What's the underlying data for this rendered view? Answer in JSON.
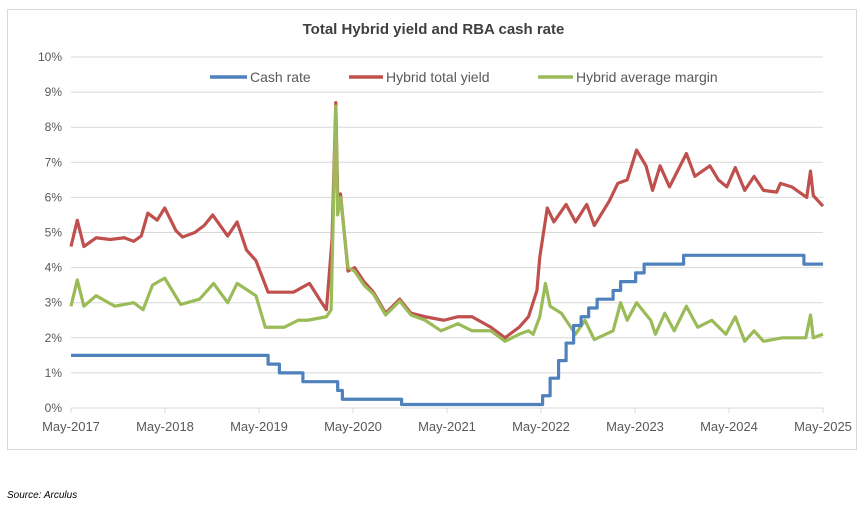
{
  "chart_data": {
    "type": "line",
    "title": "Total Hybrid yield and RBA cash rate",
    "xlabel": "",
    "ylabel": "",
    "x_unit": "decimal year",
    "xlim": [
      2017.333,
      2025.333
    ],
    "ylim": [
      0,
      10
    ],
    "grid": true,
    "legend_position": "top",
    "y_ticks": [
      "0%",
      "1%",
      "2%",
      "3%",
      "4%",
      "5%",
      "6%",
      "7%",
      "8%",
      "9%",
      "10%"
    ],
    "x_ticks": [
      {
        "x": 2017.333,
        "label": "May-2017"
      },
      {
        "x": 2018.333,
        "label": "May-2018"
      },
      {
        "x": 2019.333,
        "label": "May-2019"
      },
      {
        "x": 2020.333,
        "label": "May-2020"
      },
      {
        "x": 2021.333,
        "label": "May-2021"
      },
      {
        "x": 2022.333,
        "label": "May-2022"
      },
      {
        "x": 2023.333,
        "label": "May-2023"
      },
      {
        "x": 2024.333,
        "label": "May-2024"
      },
      {
        "x": 2025.333,
        "label": "May-2025"
      }
    ],
    "series": [
      {
        "name": "Cash rate",
        "color": "#4f81bd",
        "step": true,
        "points": [
          [
            2017.333,
            1.5
          ],
          [
            2019.43,
            1.25
          ],
          [
            2019.55,
            1.0
          ],
          [
            2019.8,
            0.75
          ],
          [
            2020.17,
            0.5
          ],
          [
            2020.22,
            0.25
          ],
          [
            2020.85,
            0.1
          ],
          [
            2022.35,
            0.35
          ],
          [
            2022.43,
            0.85
          ],
          [
            2022.52,
            1.35
          ],
          [
            2022.6,
            1.85
          ],
          [
            2022.68,
            2.35
          ],
          [
            2022.76,
            2.6
          ],
          [
            2022.84,
            2.85
          ],
          [
            2022.93,
            3.1
          ],
          [
            2023.1,
            3.35
          ],
          [
            2023.18,
            3.6
          ],
          [
            2023.34,
            3.85
          ],
          [
            2023.43,
            4.1
          ],
          [
            2023.85,
            4.35
          ],
          [
            2025.13,
            4.1
          ],
          [
            2025.333,
            4.1
          ]
        ]
      },
      {
        "name": "Hybrid total yield",
        "color": "#c0504d",
        "points": [
          [
            2017.333,
            4.6
          ],
          [
            2017.4,
            5.35
          ],
          [
            2017.47,
            4.6
          ],
          [
            2017.6,
            4.85
          ],
          [
            2017.75,
            4.8
          ],
          [
            2017.9,
            4.85
          ],
          [
            2018.0,
            4.75
          ],
          [
            2018.08,
            4.9
          ],
          [
            2018.15,
            5.55
          ],
          [
            2018.25,
            5.35
          ],
          [
            2018.33,
            5.7
          ],
          [
            2018.45,
            5.05
          ],
          [
            2018.52,
            4.87
          ],
          [
            2018.65,
            5.0
          ],
          [
            2018.75,
            5.2
          ],
          [
            2018.84,
            5.5
          ],
          [
            2018.92,
            5.2
          ],
          [
            2019.0,
            4.9
          ],
          [
            2019.1,
            5.3
          ],
          [
            2019.2,
            4.5
          ],
          [
            2019.3,
            4.2
          ],
          [
            2019.43,
            3.3
          ],
          [
            2019.55,
            3.3
          ],
          [
            2019.7,
            3.3
          ],
          [
            2019.87,
            3.55
          ],
          [
            2020.0,
            3.0
          ],
          [
            2020.05,
            2.8
          ],
          [
            2020.11,
            4.8
          ],
          [
            2020.15,
            8.7
          ],
          [
            2020.17,
            6.0
          ],
          [
            2020.2,
            6.1
          ],
          [
            2020.28,
            3.9
          ],
          [
            2020.35,
            4.0
          ],
          [
            2020.45,
            3.6
          ],
          [
            2020.55,
            3.3
          ],
          [
            2020.68,
            2.7
          ],
          [
            2020.83,
            3.1
          ],
          [
            2020.95,
            2.7
          ],
          [
            2021.1,
            2.6
          ],
          [
            2021.3,
            2.5
          ],
          [
            2021.45,
            2.6
          ],
          [
            2021.6,
            2.6
          ],
          [
            2021.8,
            2.3
          ],
          [
            2021.95,
            2.0
          ],
          [
            2022.1,
            2.3
          ],
          [
            2022.2,
            2.6
          ],
          [
            2022.29,
            3.35
          ],
          [
            2022.32,
            4.3
          ],
          [
            2022.4,
            5.7
          ],
          [
            2022.47,
            5.3
          ],
          [
            2022.6,
            5.8
          ],
          [
            2022.7,
            5.3
          ],
          [
            2022.82,
            5.8
          ],
          [
            2022.9,
            5.2
          ],
          [
            2023.06,
            5.9
          ],
          [
            2023.15,
            6.4
          ],
          [
            2023.25,
            6.5
          ],
          [
            2023.35,
            7.35
          ],
          [
            2023.45,
            6.9
          ],
          [
            2023.52,
            6.2
          ],
          [
            2023.6,
            6.9
          ],
          [
            2023.7,
            6.3
          ],
          [
            2023.88,
            7.25
          ],
          [
            2023.97,
            6.6
          ],
          [
            2024.13,
            6.9
          ],
          [
            2024.22,
            6.5
          ],
          [
            2024.31,
            6.3
          ],
          [
            2024.4,
            6.85
          ],
          [
            2024.5,
            6.2
          ],
          [
            2024.6,
            6.6
          ],
          [
            2024.7,
            6.2
          ],
          [
            2024.84,
            6.15
          ],
          [
            2024.88,
            6.4
          ],
          [
            2025.0,
            6.3
          ],
          [
            2025.16,
            6.0
          ],
          [
            2025.2,
            6.75
          ],
          [
            2025.23,
            6.05
          ],
          [
            2025.333,
            5.75
          ]
        ]
      },
      {
        "name": "Hybrid average margin",
        "color": "#9bbb59",
        "points": [
          [
            2017.333,
            2.9
          ],
          [
            2017.4,
            3.65
          ],
          [
            2017.47,
            2.9
          ],
          [
            2017.6,
            3.2
          ],
          [
            2017.8,
            2.9
          ],
          [
            2018.0,
            3.0
          ],
          [
            2018.1,
            2.8
          ],
          [
            2018.2,
            3.5
          ],
          [
            2018.33,
            3.7
          ],
          [
            2018.5,
            2.95
          ],
          [
            2018.7,
            3.1
          ],
          [
            2018.85,
            3.55
          ],
          [
            2019.0,
            3.0
          ],
          [
            2019.1,
            3.55
          ],
          [
            2019.3,
            3.2
          ],
          [
            2019.4,
            2.3
          ],
          [
            2019.6,
            2.3
          ],
          [
            2019.75,
            2.5
          ],
          [
            2019.85,
            2.5
          ],
          [
            2020.05,
            2.6
          ],
          [
            2020.1,
            2.8
          ],
          [
            2020.15,
            8.6
          ],
          [
            2020.17,
            5.5
          ],
          [
            2020.2,
            6.0
          ],
          [
            2020.28,
            4.0
          ],
          [
            2020.35,
            3.9
          ],
          [
            2020.45,
            3.5
          ],
          [
            2020.55,
            3.25
          ],
          [
            2020.68,
            2.65
          ],
          [
            2020.83,
            3.05
          ],
          [
            2020.95,
            2.65
          ],
          [
            2021.1,
            2.5
          ],
          [
            2021.27,
            2.2
          ],
          [
            2021.45,
            2.4
          ],
          [
            2021.6,
            2.2
          ],
          [
            2021.8,
            2.2
          ],
          [
            2021.95,
            1.9
          ],
          [
            2022.1,
            2.1
          ],
          [
            2022.2,
            2.2
          ],
          [
            2022.25,
            2.1
          ],
          [
            2022.32,
            2.6
          ],
          [
            2022.38,
            3.55
          ],
          [
            2022.43,
            2.9
          ],
          [
            2022.55,
            2.7
          ],
          [
            2022.7,
            2.1
          ],
          [
            2022.8,
            2.5
          ],
          [
            2022.9,
            1.95
          ],
          [
            2023.1,
            2.2
          ],
          [
            2023.18,
            3.0
          ],
          [
            2023.25,
            2.5
          ],
          [
            2023.35,
            3.0
          ],
          [
            2023.5,
            2.5
          ],
          [
            2023.55,
            2.1
          ],
          [
            2023.65,
            2.7
          ],
          [
            2023.75,
            2.2
          ],
          [
            2023.88,
            2.9
          ],
          [
            2024.0,
            2.3
          ],
          [
            2024.15,
            2.5
          ],
          [
            2024.3,
            2.1
          ],
          [
            2024.4,
            2.6
          ],
          [
            2024.5,
            1.9
          ],
          [
            2024.6,
            2.2
          ],
          [
            2024.7,
            1.9
          ],
          [
            2024.9,
            2.0
          ],
          [
            2025.15,
            2.0
          ],
          [
            2025.2,
            2.65
          ],
          [
            2025.23,
            2.0
          ],
          [
            2025.333,
            2.1
          ]
        ]
      }
    ]
  },
  "source": "Source: Arculus"
}
